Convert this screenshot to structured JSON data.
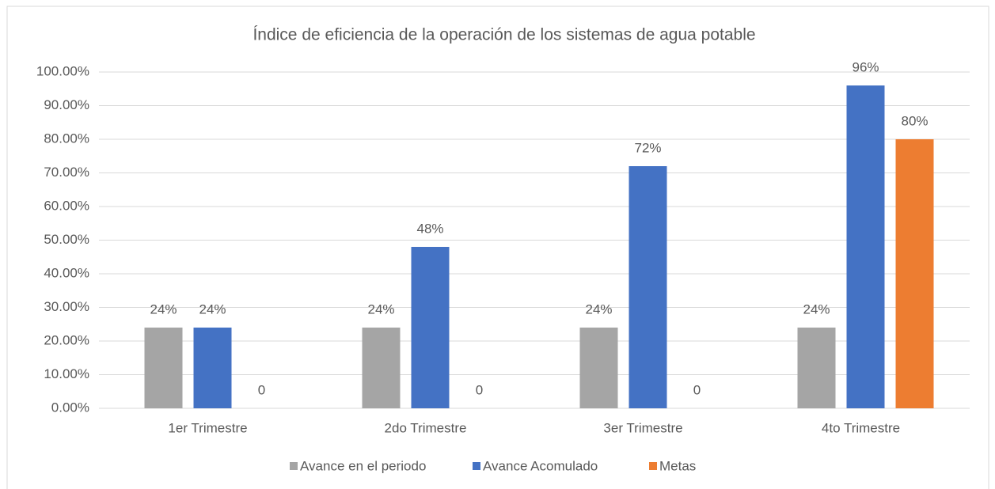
{
  "chart_data": {
    "type": "bar",
    "title": "Índice de eficiencia de la operación de los sistemas de agua potable",
    "categories": [
      "1er Trimestre",
      "2do Trimestre",
      "3er Trimestre",
      "4to Trimestre"
    ],
    "series": [
      {
        "name": "Avance en el periodo",
        "color": "#a5a5a5",
        "values": [
          24,
          24,
          24,
          24
        ],
        "value_labels": [
          "24%",
          "24%",
          "24%",
          "24%"
        ]
      },
      {
        "name": "Avance Acomulado",
        "color": "#4472c4",
        "values": [
          24,
          48,
          72,
          96
        ],
        "value_labels": [
          "24%",
          "48%",
          "72%",
          "96%"
        ]
      },
      {
        "name": "Metas",
        "color": "#ed7d31",
        "values": [
          0,
          0,
          0,
          80
        ],
        "value_labels": [
          "0",
          "0",
          "0",
          "80%"
        ]
      }
    ],
    "ylim": [
      0,
      100
    ],
    "yticks": [
      {
        "value": 0,
        "label": "0.00%"
      },
      {
        "value": 10,
        "label": "10.00%"
      },
      {
        "value": 20,
        "label": "20.00%"
      },
      {
        "value": 30,
        "label": "30.00%"
      },
      {
        "value": 40,
        "label": "40.00%"
      },
      {
        "value": 50,
        "label": "50.00%"
      },
      {
        "value": 60,
        "label": "60.00%"
      },
      {
        "value": 70,
        "label": "70.00%"
      },
      {
        "value": 80,
        "label": "80.00%"
      },
      {
        "value": 90,
        "label": "90.00%"
      },
      {
        "value": 100,
        "label": "100.00%"
      }
    ],
    "grid": true,
    "legend": "bottom"
  }
}
